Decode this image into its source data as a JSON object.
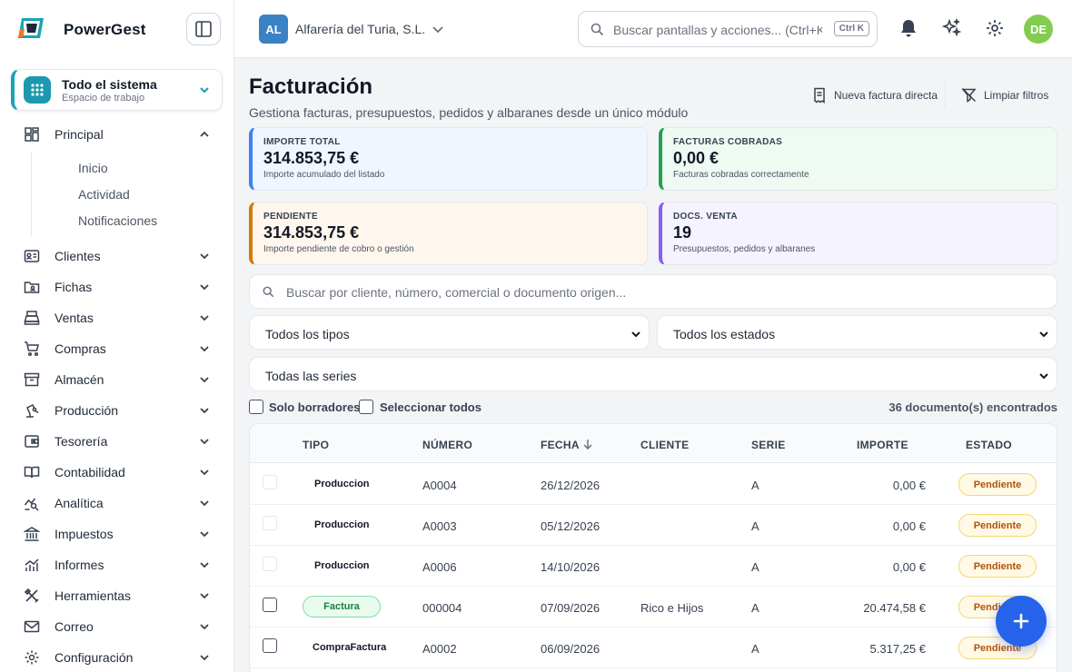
{
  "app": {
    "name": "PowerGest"
  },
  "workspace": {
    "title": "Todo el sistema",
    "subtitle": "Espacio de trabajo"
  },
  "nav": {
    "principal": "Principal",
    "sub": [
      "Inicio",
      "Actividad",
      "Notificaciones"
    ],
    "items": [
      "Clientes",
      "Fichas",
      "Ventas",
      "Compras",
      "Almacén",
      "Producción",
      "Tesorería",
      "Contabilidad",
      "Analítica",
      "Impuestos",
      "Informes",
      "Herramientas",
      "Correo",
      "Configuración"
    ]
  },
  "topbar": {
    "company_initials": "AL",
    "company_name": "Alfarería del Turia, S.L.",
    "search_placeholder": "Buscar pantallas y acciones... (Ctrl+K)",
    "shortcut": "Ctrl K",
    "user_initials": "DE"
  },
  "page": {
    "title": "Facturación",
    "subtitle": "Gestiona facturas, presupuestos, pedidos y albaranes desde un único módulo",
    "new_invoice": "Nueva factura directa",
    "clear_filters": "Limpiar filtros"
  },
  "cards": [
    {
      "label": "IMPORTE TOTAL",
      "value": "314.853,75 €",
      "sub": "Importe acumulado del listado",
      "accent": "#3b82f6",
      "bg": "#eff6ff"
    },
    {
      "label": "FACTURAS COBRADAS",
      "value": "0,00 €",
      "sub": "Facturas cobradas correctamente",
      "accent": "#22a055",
      "bg": "#effaf2"
    },
    {
      "label": "PENDIENTE",
      "value": "314.853,75 €",
      "sub": "Importe pendiente de cobro o gestión",
      "accent": "#d97706",
      "bg": "#fff7ed"
    },
    {
      "label": "DOCS. VENTA",
      "value": "19",
      "sub": "Presupuestos, pedidos y albaranes",
      "accent": "#8b5cf6",
      "bg": "#f5f3ff"
    }
  ],
  "filters": {
    "search_placeholder": "Buscar por cliente, número, comercial o documento origen...",
    "tipos": "Todos los tipos",
    "estados": "Todos los estados",
    "series": "Todas las series",
    "solo_borradores": "Solo borradores",
    "seleccionar_todos": "Seleccionar todos",
    "count": "36 documento(s) encontrados"
  },
  "table": {
    "headers": [
      "TIPO",
      "NÚMERO",
      "FECHA",
      "CLIENTE",
      "SERIE",
      "IMPORTE",
      "ESTADO"
    ],
    "rows": [
      {
        "tipo": "Produccion",
        "numero": "A0004",
        "fecha": "26/12/2026",
        "cliente": "",
        "serie": "A",
        "importe": "0,00 €",
        "estado": "Pendiente"
      },
      {
        "tipo": "Produccion",
        "numero": "A0003",
        "fecha": "05/12/2026",
        "cliente": "",
        "serie": "A",
        "importe": "0,00 €",
        "estado": "Pendiente"
      },
      {
        "tipo": "Produccion",
        "numero": "A0006",
        "fecha": "14/10/2026",
        "cliente": "",
        "serie": "A",
        "importe": "0,00 €",
        "estado": "Pendiente"
      },
      {
        "tipo": "Factura",
        "numero": "000004",
        "fecha": "07/09/2026",
        "cliente": "Rico e Hijos",
        "serie": "A",
        "importe": "20.474,58 €",
        "estado": "Pendiente"
      },
      {
        "tipo": "CompraFactura",
        "numero": "A0002",
        "fecha": "06/09/2026",
        "cliente": "",
        "serie": "A",
        "importe": "5.317,25 €",
        "estado": "Pendiente"
      }
    ]
  },
  "colors": {
    "primary": "#2563eb",
    "brand": "#1e98ae"
  }
}
